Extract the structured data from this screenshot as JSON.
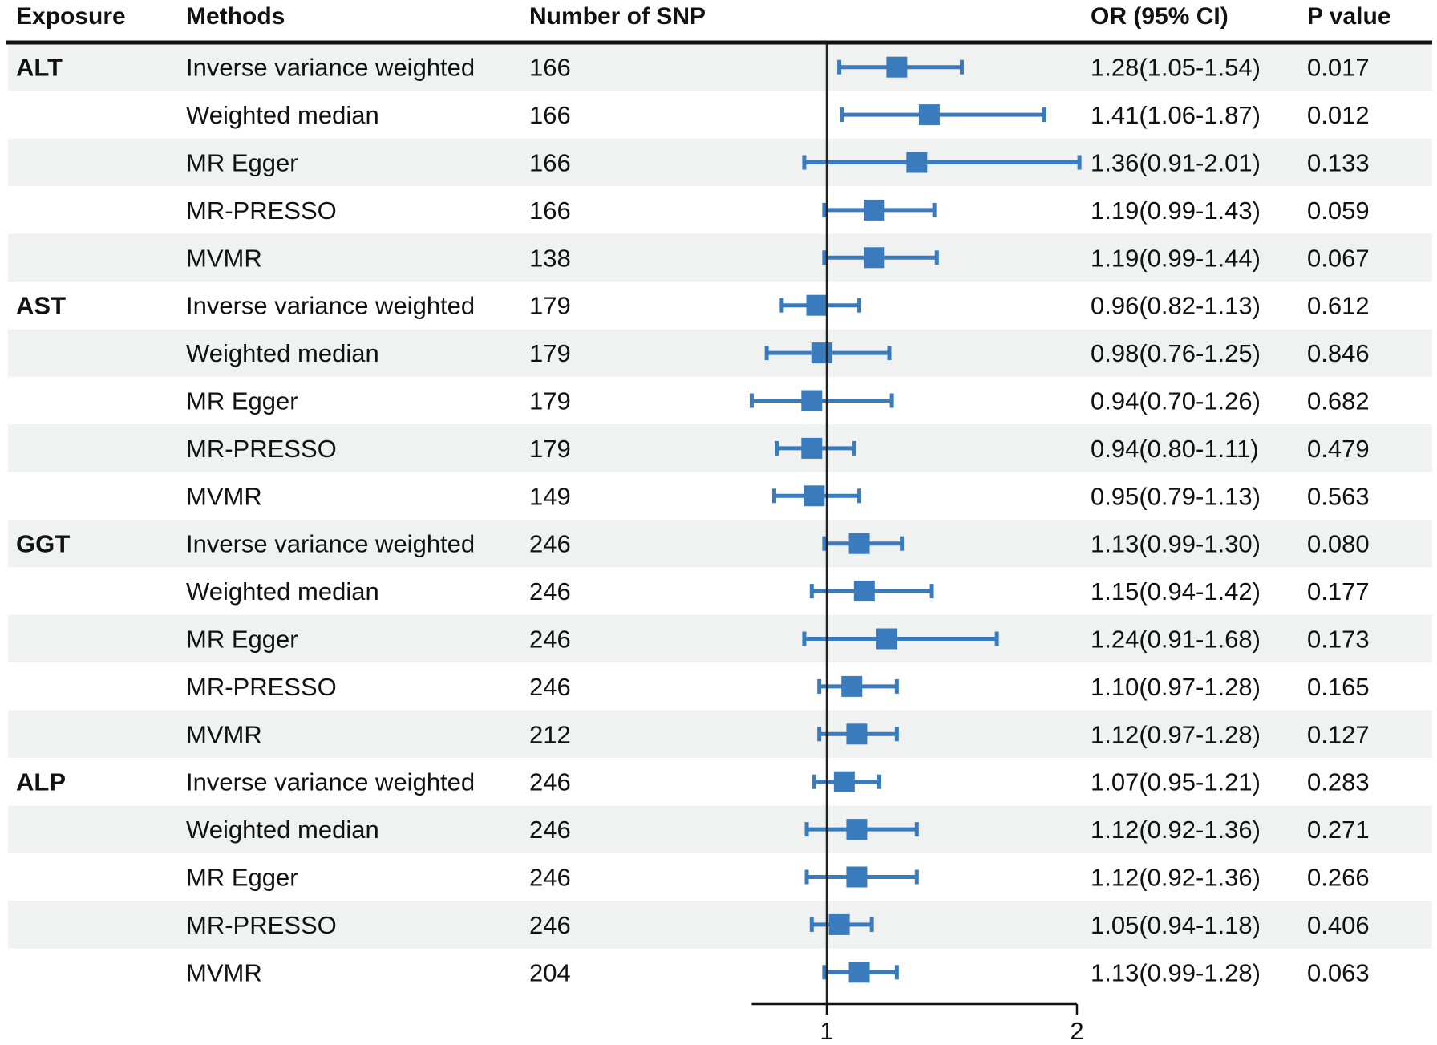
{
  "chart_data": {
    "type": "forest",
    "headers": {
      "exposure": "Exposure",
      "methods": "Methods",
      "nsnp": "Number of SNP",
      "or": "OR (95% CI)",
      "p": "P value"
    },
    "reference_line": 1,
    "xlim": [
      0.7,
      2.0
    ],
    "x_ticks": [
      1,
      2
    ],
    "colors": {
      "marker": "#3a7bbd",
      "band": "#eff2f1",
      "text": "#111111"
    },
    "rows": [
      {
        "exposure": "ALT",
        "method": "Inverse variance weighted",
        "nsnp": "166",
        "or": 1.28,
        "lo": 1.05,
        "hi": 1.54,
        "or_text": "1.28(1.05-1.54)",
        "p": "0.017"
      },
      {
        "exposure": "",
        "method": "Weighted median",
        "nsnp": "166",
        "or": 1.41,
        "lo": 1.06,
        "hi": 1.87,
        "or_text": "1.41(1.06-1.87)",
        "p": "0.012"
      },
      {
        "exposure": "",
        "method": "MR Egger",
        "nsnp": "166",
        "or": 1.36,
        "lo": 0.91,
        "hi": 2.01,
        "or_text": "1.36(0.91-2.01)",
        "p": "0.133"
      },
      {
        "exposure": "",
        "method": "MR-PRESSO",
        "nsnp": "166",
        "or": 1.19,
        "lo": 0.99,
        "hi": 1.43,
        "or_text": "1.19(0.99-1.43)",
        "p": "0.059"
      },
      {
        "exposure": "",
        "method": "MVMR",
        "nsnp": "138",
        "or": 1.19,
        "lo": 0.99,
        "hi": 1.44,
        "or_text": "1.19(0.99-1.44)",
        "p": "0.067"
      },
      {
        "exposure": "AST",
        "method": "Inverse variance weighted",
        "nsnp": "179",
        "or": 0.96,
        "lo": 0.82,
        "hi": 1.13,
        "or_text": "0.96(0.82-1.13)",
        "p": "0.612"
      },
      {
        "exposure": "",
        "method": "Weighted median",
        "nsnp": "179",
        "or": 0.98,
        "lo": 0.76,
        "hi": 1.25,
        "or_text": "0.98(0.76-1.25)",
        "p": "0.846"
      },
      {
        "exposure": "",
        "method": "MR Egger",
        "nsnp": "179",
        "or": 0.94,
        "lo": 0.7,
        "hi": 1.26,
        "or_text": "0.94(0.70-1.26)",
        "p": "0.682"
      },
      {
        "exposure": "",
        "method": "MR-PRESSO",
        "nsnp": "179",
        "or": 0.94,
        "lo": 0.8,
        "hi": 1.11,
        "or_text": "0.94(0.80-1.11)",
        "p": "0.479"
      },
      {
        "exposure": "",
        "method": "MVMR",
        "nsnp": "149",
        "or": 0.95,
        "lo": 0.79,
        "hi": 1.13,
        "or_text": "0.95(0.79-1.13)",
        "p": "0.563"
      },
      {
        "exposure": "GGT",
        "method": "Inverse variance weighted",
        "nsnp": "246",
        "or": 1.13,
        "lo": 0.99,
        "hi": 1.3,
        "or_text": "1.13(0.99-1.30)",
        "p": "0.080"
      },
      {
        "exposure": "",
        "method": "Weighted median",
        "nsnp": "246",
        "or": 1.15,
        "lo": 0.94,
        "hi": 1.42,
        "or_text": "1.15(0.94-1.42)",
        "p": "0.177"
      },
      {
        "exposure": "",
        "method": "MR Egger",
        "nsnp": "246",
        "or": 1.24,
        "lo": 0.91,
        "hi": 1.68,
        "or_text": "1.24(0.91-1.68)",
        "p": "0.173"
      },
      {
        "exposure": "",
        "method": "MR-PRESSO",
        "nsnp": "246",
        "or": 1.1,
        "lo": 0.97,
        "hi": 1.28,
        "or_text": "1.10(0.97-1.28)",
        "p": "0.165"
      },
      {
        "exposure": "",
        "method": "MVMR",
        "nsnp": "212",
        "or": 1.12,
        "lo": 0.97,
        "hi": 1.28,
        "or_text": "1.12(0.97-1.28)",
        "p": "0.127"
      },
      {
        "exposure": "ALP",
        "method": "Inverse variance weighted",
        "nsnp": "246",
        "or": 1.07,
        "lo": 0.95,
        "hi": 1.21,
        "or_text": "1.07(0.95-1.21)",
        "p": "0.283"
      },
      {
        "exposure": "",
        "method": "Weighted median",
        "nsnp": "246",
        "or": 1.12,
        "lo": 0.92,
        "hi": 1.36,
        "or_text": "1.12(0.92-1.36)",
        "p": "0.271"
      },
      {
        "exposure": "",
        "method": "MR Egger",
        "nsnp": "246",
        "or": 1.12,
        "lo": 0.92,
        "hi": 1.36,
        "or_text": "1.12(0.92-1.36)",
        "p": "0.266"
      },
      {
        "exposure": "",
        "method": "MR-PRESSO",
        "nsnp": "246",
        "or": 1.05,
        "lo": 0.94,
        "hi": 1.18,
        "or_text": "1.05(0.94-1.18)",
        "p": "0.406"
      },
      {
        "exposure": "",
        "method": "MVMR",
        "nsnp": "204",
        "or": 1.13,
        "lo": 0.99,
        "hi": 1.28,
        "or_text": "1.13(0.99-1.28)",
        "p": "0.063"
      }
    ]
  }
}
